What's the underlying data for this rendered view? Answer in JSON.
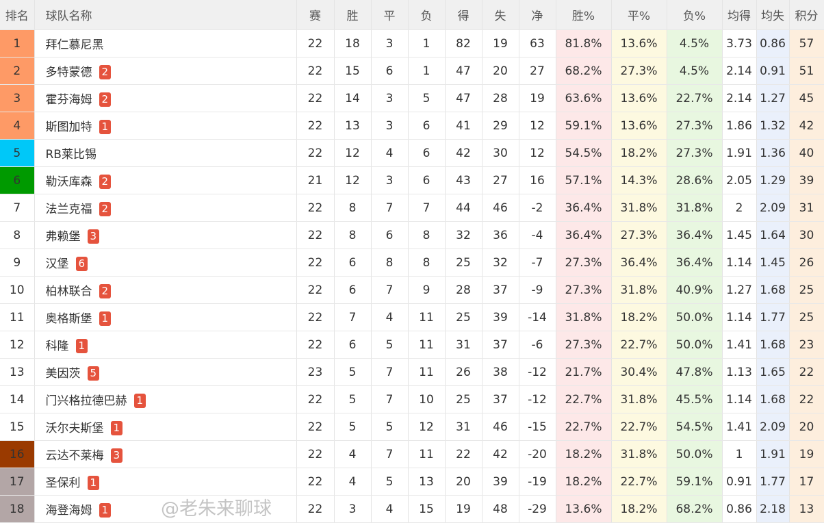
{
  "headers": [
    "排名",
    "球队名称",
    "赛",
    "胜",
    "平",
    "负",
    "得",
    "失",
    "净",
    "胜%",
    "平%",
    "负%",
    "均得",
    "均失",
    "积分"
  ],
  "rank_colors": {
    "1": "#fe9a66",
    "2": "#fe9a66",
    "3": "#fe9a66",
    "4": "#fe9a66",
    "5": "#00c8f8",
    "6": "#009a00",
    "16": "#9a3a00",
    "17": "#b3a6a6",
    "18": "#b3a6a6"
  },
  "badge_color": "#e5533d",
  "rows": [
    [
      "1",
      "拜仁慕尼黑",
      "",
      "22",
      "18",
      "3",
      "1",
      "82",
      "19",
      "63",
      "81.8%",
      "13.6%",
      "4.5%",
      "3.73",
      "0.86",
      "57"
    ],
    [
      "2",
      "多特蒙德",
      "2",
      "22",
      "15",
      "6",
      "1",
      "47",
      "20",
      "27",
      "68.2%",
      "27.3%",
      "4.5%",
      "2.14",
      "0.91",
      "51"
    ],
    [
      "3",
      "霍芬海姆",
      "2",
      "22",
      "14",
      "3",
      "5",
      "47",
      "28",
      "19",
      "63.6%",
      "13.6%",
      "22.7%",
      "2.14",
      "1.27",
      "45"
    ],
    [
      "4",
      "斯图加特",
      "1",
      "22",
      "13",
      "3",
      "6",
      "41",
      "29",
      "12",
      "59.1%",
      "13.6%",
      "27.3%",
      "1.86",
      "1.32",
      "42"
    ],
    [
      "5",
      "RB莱比锡",
      "",
      "22",
      "12",
      "4",
      "6",
      "42",
      "30",
      "12",
      "54.5%",
      "18.2%",
      "27.3%",
      "1.91",
      "1.36",
      "40"
    ],
    [
      "6",
      "勒沃库森",
      "2",
      "21",
      "12",
      "3",
      "6",
      "43",
      "27",
      "16",
      "57.1%",
      "14.3%",
      "28.6%",
      "2.05",
      "1.29",
      "39"
    ],
    [
      "7",
      "法兰克福",
      "2",
      "22",
      "8",
      "7",
      "7",
      "44",
      "46",
      "-2",
      "36.4%",
      "31.8%",
      "31.8%",
      "2",
      "2.09",
      "31"
    ],
    [
      "8",
      "弗赖堡",
      "3",
      "22",
      "8",
      "6",
      "8",
      "32",
      "36",
      "-4",
      "36.4%",
      "27.3%",
      "36.4%",
      "1.45",
      "1.64",
      "30"
    ],
    [
      "9",
      "汉堡",
      "6",
      "22",
      "6",
      "8",
      "8",
      "25",
      "32",
      "-7",
      "27.3%",
      "36.4%",
      "36.4%",
      "1.14",
      "1.45",
      "26"
    ],
    [
      "10",
      "柏林联合",
      "2",
      "22",
      "6",
      "7",
      "9",
      "28",
      "37",
      "-9",
      "27.3%",
      "31.8%",
      "40.9%",
      "1.27",
      "1.68",
      "25"
    ],
    [
      "11",
      "奥格斯堡",
      "1",
      "22",
      "7",
      "4",
      "11",
      "25",
      "39",
      "-14",
      "31.8%",
      "18.2%",
      "50.0%",
      "1.14",
      "1.77",
      "25"
    ],
    [
      "12",
      "科隆",
      "1",
      "22",
      "6",
      "5",
      "11",
      "31",
      "37",
      "-6",
      "27.3%",
      "22.7%",
      "50.0%",
      "1.41",
      "1.68",
      "23"
    ],
    [
      "13",
      "美因茨",
      "5",
      "23",
      "5",
      "7",
      "11",
      "26",
      "38",
      "-12",
      "21.7%",
      "30.4%",
      "47.8%",
      "1.13",
      "1.65",
      "22"
    ],
    [
      "14",
      "门兴格拉德巴赫",
      "1",
      "22",
      "5",
      "7",
      "10",
      "25",
      "37",
      "-12",
      "22.7%",
      "31.8%",
      "45.5%",
      "1.14",
      "1.68",
      "22"
    ],
    [
      "15",
      "沃尔夫斯堡",
      "1",
      "22",
      "5",
      "5",
      "12",
      "31",
      "46",
      "-15",
      "22.7%",
      "22.7%",
      "54.5%",
      "1.41",
      "2.09",
      "20"
    ],
    [
      "16",
      "云达不莱梅",
      "3",
      "22",
      "4",
      "7",
      "11",
      "22",
      "42",
      "-20",
      "18.2%",
      "31.8%",
      "50.0%",
      "1",
      "1.91",
      "19"
    ],
    [
      "17",
      "圣保利",
      "1",
      "22",
      "4",
      "5",
      "13",
      "20",
      "39",
      "-19",
      "18.2%",
      "22.7%",
      "59.1%",
      "0.91",
      "1.77",
      "17"
    ],
    [
      "18",
      "海登海姆",
      "1",
      "22",
      "3",
      "4",
      "15",
      "19",
      "48",
      "-29",
      "13.6%",
      "18.2%",
      "68.2%",
      "0.86",
      "2.18",
      "13"
    ]
  ],
  "watermark": "@老朱来聊球"
}
